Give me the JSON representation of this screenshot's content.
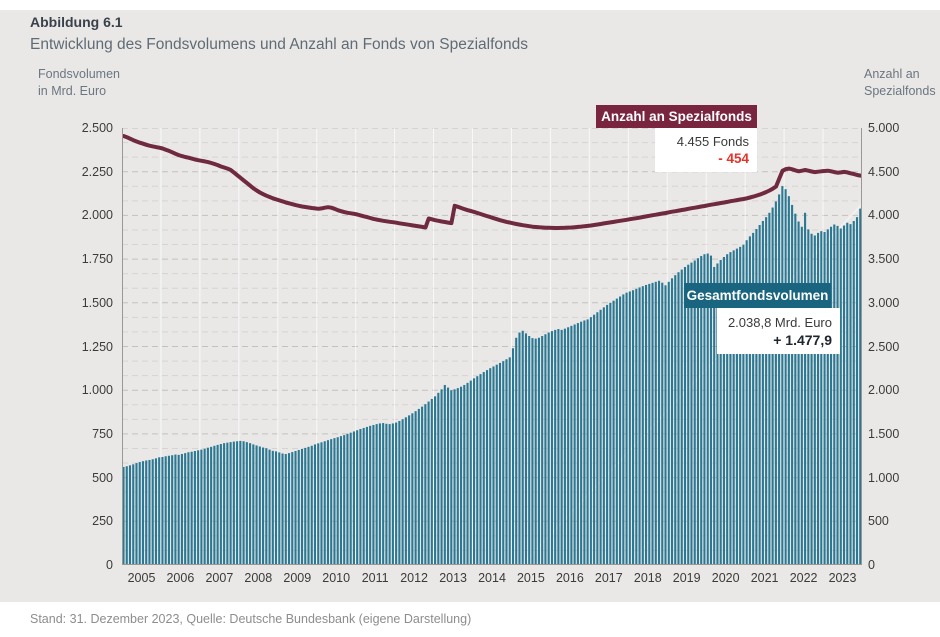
{
  "figure": {
    "label": "Abbildung 6.1",
    "title": "Entwicklung des Fondsvolumens und Anzahl an Fonds von Spezialfonds",
    "footer": "Stand: 31. Dezember 2023, Quelle: Deutsche Bundesbank (eigene Darstellung)"
  },
  "axes": {
    "left_caption_line1": "Fondsvolumen",
    "left_caption_line2": "in Mrd. Euro",
    "right_caption_line1": "Anzahl an",
    "right_caption_line2": "Spezialfonds"
  },
  "annotations": {
    "line_label": "Anzahl an Spezialfonds",
    "line_value": "4.455 Fonds",
    "line_change": "- 454",
    "bar_label": "Gesamtfondsvolumen",
    "bar_value": "2.038,8 Mrd. Euro",
    "bar_change": "+ 1.477,9"
  },
  "colors": {
    "panel_bg": "#eae8e6",
    "bar": "#2a7894",
    "line": "#6f2a3f",
    "line_callout_bg": "#7a2540",
    "bar_callout_bg": "#19647f",
    "negative_red": "#e5332a",
    "grid_minor": "#d6d4d1",
    "grid_major": "#c3c1be",
    "axis_frame": "#9a9892"
  },
  "chart_data": {
    "type": "bar",
    "title": "Entwicklung des Fondsvolumens und Anzahl an Fonds von Spezialfonds",
    "x_unit": "month",
    "x_start": "2005-01",
    "x_end": "2023-12",
    "grid": "dashed-horizontal",
    "year_labels": [
      "2005",
      "2006",
      "2007",
      "2008",
      "2009",
      "2010",
      "2011",
      "2012",
      "2013",
      "2014",
      "2015",
      "2016",
      "2017",
      "2018",
      "2019",
      "2020",
      "2021",
      "2022",
      "2023"
    ],
    "left_axis": {
      "label": "Fondsvolumen in Mrd. Euro",
      "range": [
        0,
        2500
      ],
      "tick_step": 250,
      "tick_values": [
        0,
        250,
        500,
        750,
        1000,
        1250,
        1500,
        1750,
        2000,
        2250,
        2500
      ],
      "tick_labels": [
        "0",
        "250",
        "500",
        "750",
        "1.000",
        "1.250",
        "1.500",
        "1.750",
        "2.000",
        "2.250",
        "2.500"
      ]
    },
    "right_axis": {
      "label": "Anzahl an Spezialfonds",
      "range": [
        0,
        5000
      ],
      "tick_step": 500,
      "tick_values": [
        0,
        500,
        1000,
        1500,
        2000,
        2500,
        3000,
        3500,
        4000,
        4500,
        5000
      ],
      "tick_labels": [
        "0",
        "500",
        "1.000",
        "1.500",
        "2.000",
        "2.500",
        "3.000",
        "3.500",
        "4.000",
        "4.500",
        "5.000"
      ]
    },
    "series": [
      {
        "name": "Gesamtfondsvolumen",
        "type": "bar",
        "axis": "left",
        "color": "#2a7894",
        "last_value_label": "2.038,8 Mrd. Euro",
        "change_label": "+ 1.477,9",
        "values": [
          561,
          565,
          570,
          576,
          583,
          589,
          594,
          598,
          601,
          605,
          610,
          616,
          618,
          622,
          625,
          628,
          632,
          630,
          635,
          640,
          645,
          648,
          652,
          656,
          660,
          665,
          671,
          676,
          682,
          687,
          692,
          697,
          700,
          703,
          706,
          708,
          710,
          708,
          703,
          697,
          690,
          684,
          678,
          672,
          668,
          660,
          653,
          650,
          644,
          638,
          635,
          640,
          646,
          652,
          658,
          664,
          670,
          676,
          682,
          690,
          696,
          702,
          708,
          714,
          720,
          726,
          731,
          737,
          743,
          750,
          757,
          764,
          771,
          778,
          784,
          790,
          796,
          801,
          806,
          810,
          812,
          808,
          806,
          810,
          815,
          824,
          834,
          845,
          856,
          868,
          880,
          893,
          906,
          920,
          935,
          950,
          965,
          985,
          1005,
          1030,
          1015,
          1000,
          1005,
          1012,
          1020,
          1030,
          1042,
          1055,
          1068,
          1080,
          1092,
          1104,
          1115,
          1126,
          1136,
          1146,
          1156,
          1166,
          1177,
          1188,
          1240,
          1300,
          1330,
          1340,
          1325,
          1310,
          1298,
          1295,
          1300,
          1310,
          1320,
          1330,
          1338,
          1345,
          1350,
          1345,
          1352,
          1360,
          1368,
          1376,
          1384,
          1392,
          1399,
          1405,
          1418,
          1432,
          1446,
          1460,
          1474,
          1488,
          1500,
          1512,
          1524,
          1536,
          1548,
          1558,
          1565,
          1572,
          1580,
          1588,
          1595,
          1602,
          1608,
          1614,
          1620,
          1626,
          1615,
          1600,
          1620,
          1640,
          1658,
          1675,
          1690,
          1705,
          1718,
          1730,
          1742,
          1755,
          1768,
          1778,
          1782,
          1770,
          1705,
          1725,
          1745,
          1762,
          1778,
          1790,
          1800,
          1810,
          1820,
          1832,
          1858,
          1880,
          1900,
          1922,
          1945,
          1968,
          1990,
          2015,
          2045,
          2080,
          2120,
          2168,
          2150,
          2110,
          2060,
          2010,
          1965,
          1935,
          2015,
          1920,
          1895,
          1885,
          1900,
          1910,
          1905,
          1920,
          1935,
          1948,
          1940,
          1925,
          1942,
          1958,
          1950,
          1968,
          1990,
          2038.8
        ]
      },
      {
        "name": "Anzahl an Spezialfonds",
        "type": "line",
        "axis": "right",
        "color": "#6f2a3f",
        "last_value_label": "4.455 Fonds",
        "change_label": "- 454",
        "values": [
          4909,
          4895,
          4878,
          4860,
          4845,
          4832,
          4820,
          4808,
          4798,
          4790,
          4782,
          4775,
          4765,
          4752,
          4738,
          4722,
          4705,
          4690,
          4678,
          4668,
          4660,
          4650,
          4640,
          4632,
          4625,
          4618,
          4610,
          4600,
          4588,
          4575,
          4560,
          4548,
          4535,
          4520,
          4490,
          4460,
          4430,
          4400,
          4370,
          4340,
          4310,
          4285,
          4262,
          4242,
          4225,
          4210,
          4196,
          4183,
          4172,
          4160,
          4148,
          4138,
          4128,
          4118,
          4110,
          4102,
          4096,
          4090,
          4085,
          4080,
          4076,
          4080,
          4088,
          4094,
          4088,
          4075,
          4060,
          4048,
          4038,
          4030,
          4024,
          4018,
          4010,
          4000,
          3990,
          3980,
          3970,
          3960,
          3952,
          3945,
          3938,
          3932,
          3927,
          3922,
          3916,
          3910,
          3904,
          3898,
          3892,
          3886,
          3880,
          3874,
          3868,
          3862,
          3965,
          3955,
          3945,
          3938,
          3930,
          3924,
          3918,
          3912,
          4110,
          4098,
          4085,
          4072,
          4060,
          4050,
          4040,
          4028,
          4016,
          4004,
          3992,
          3980,
          3968,
          3956,
          3945,
          3935,
          3926,
          3918,
          3910,
          3902,
          3895,
          3888,
          3882,
          3876,
          3871,
          3867,
          3864,
          3861,
          3859,
          3858,
          3857,
          3856,
          3856,
          3857,
          3858,
          3860,
          3862,
          3865,
          3868,
          3872,
          3876,
          3880,
          3885,
          3890,
          3896,
          3902,
          3908,
          3914,
          3920,
          3926,
          3932,
          3938,
          3944,
          3950,
          3956,
          3962,
          3968,
          3975,
          3982,
          3988,
          3995,
          4002,
          4008,
          4015,
          4022,
          4028,
          4035,
          4042,
          4048,
          4055,
          4062,
          4068,
          4075,
          4082,
          4088,
          4095,
          4102,
          4108,
          4115,
          4122,
          4128,
          4135,
          4142,
          4148,
          4155,
          4162,
          4168,
          4175,
          4182,
          4188,
          4196,
          4205,
          4215,
          4226,
          4238,
          4252,
          4268,
          4285,
          4305,
          4330,
          4420,
          4510,
          4530,
          4535,
          4528,
          4515,
          4505,
          4512,
          4520,
          4512,
          4502,
          4495,
          4500,
          4505,
          4508,
          4512,
          4505,
          4495,
          4488,
          4492,
          4498,
          4492,
          4482,
          4472,
          4462,
          4455
        ]
      }
    ]
  }
}
